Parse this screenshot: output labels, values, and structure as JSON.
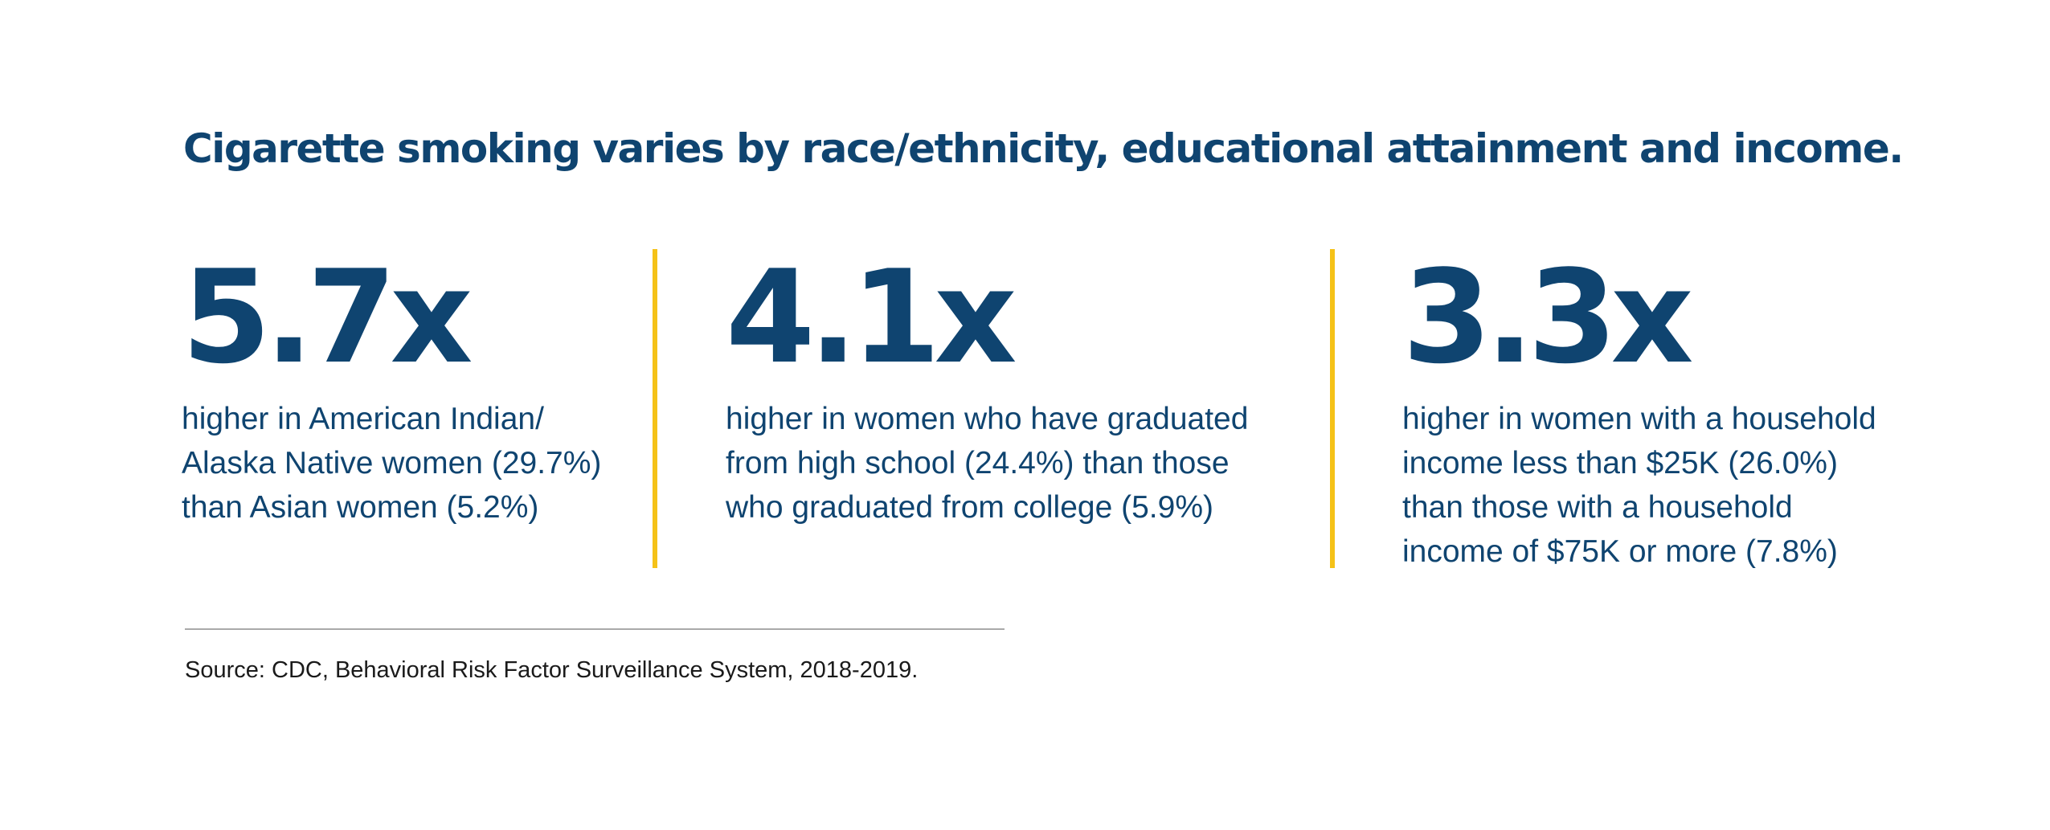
{
  "title": "Cigarette smoking varies by race/ethnicity, educational attainment and income.",
  "stats": [
    {
      "value": "5.7x",
      "lines": [
        "higher in American Indian/",
        "Alaska Native women (29.7%)",
        "than Asian women (5.2%)"
      ]
    },
    {
      "value": "4.1x",
      "lines": [
        "higher in women who have graduated",
        "from high school (24.4%) than those",
        "who graduated from college (5.9%)"
      ]
    },
    {
      "value": "3.3x",
      "lines": [
        "higher in women with a household",
        "income less than $25K (26.0%)",
        "than those with a household",
        "income of $75K or more (7.8%)"
      ]
    }
  ],
  "source": "Source: CDC, Behavioral Risk Factor Surveillance System, 2018-2019.",
  "colors": {
    "text": "#0f4470",
    "divider": "#f5c218",
    "rule": "#a9a9a9",
    "source_text": "#1a1a1a"
  }
}
